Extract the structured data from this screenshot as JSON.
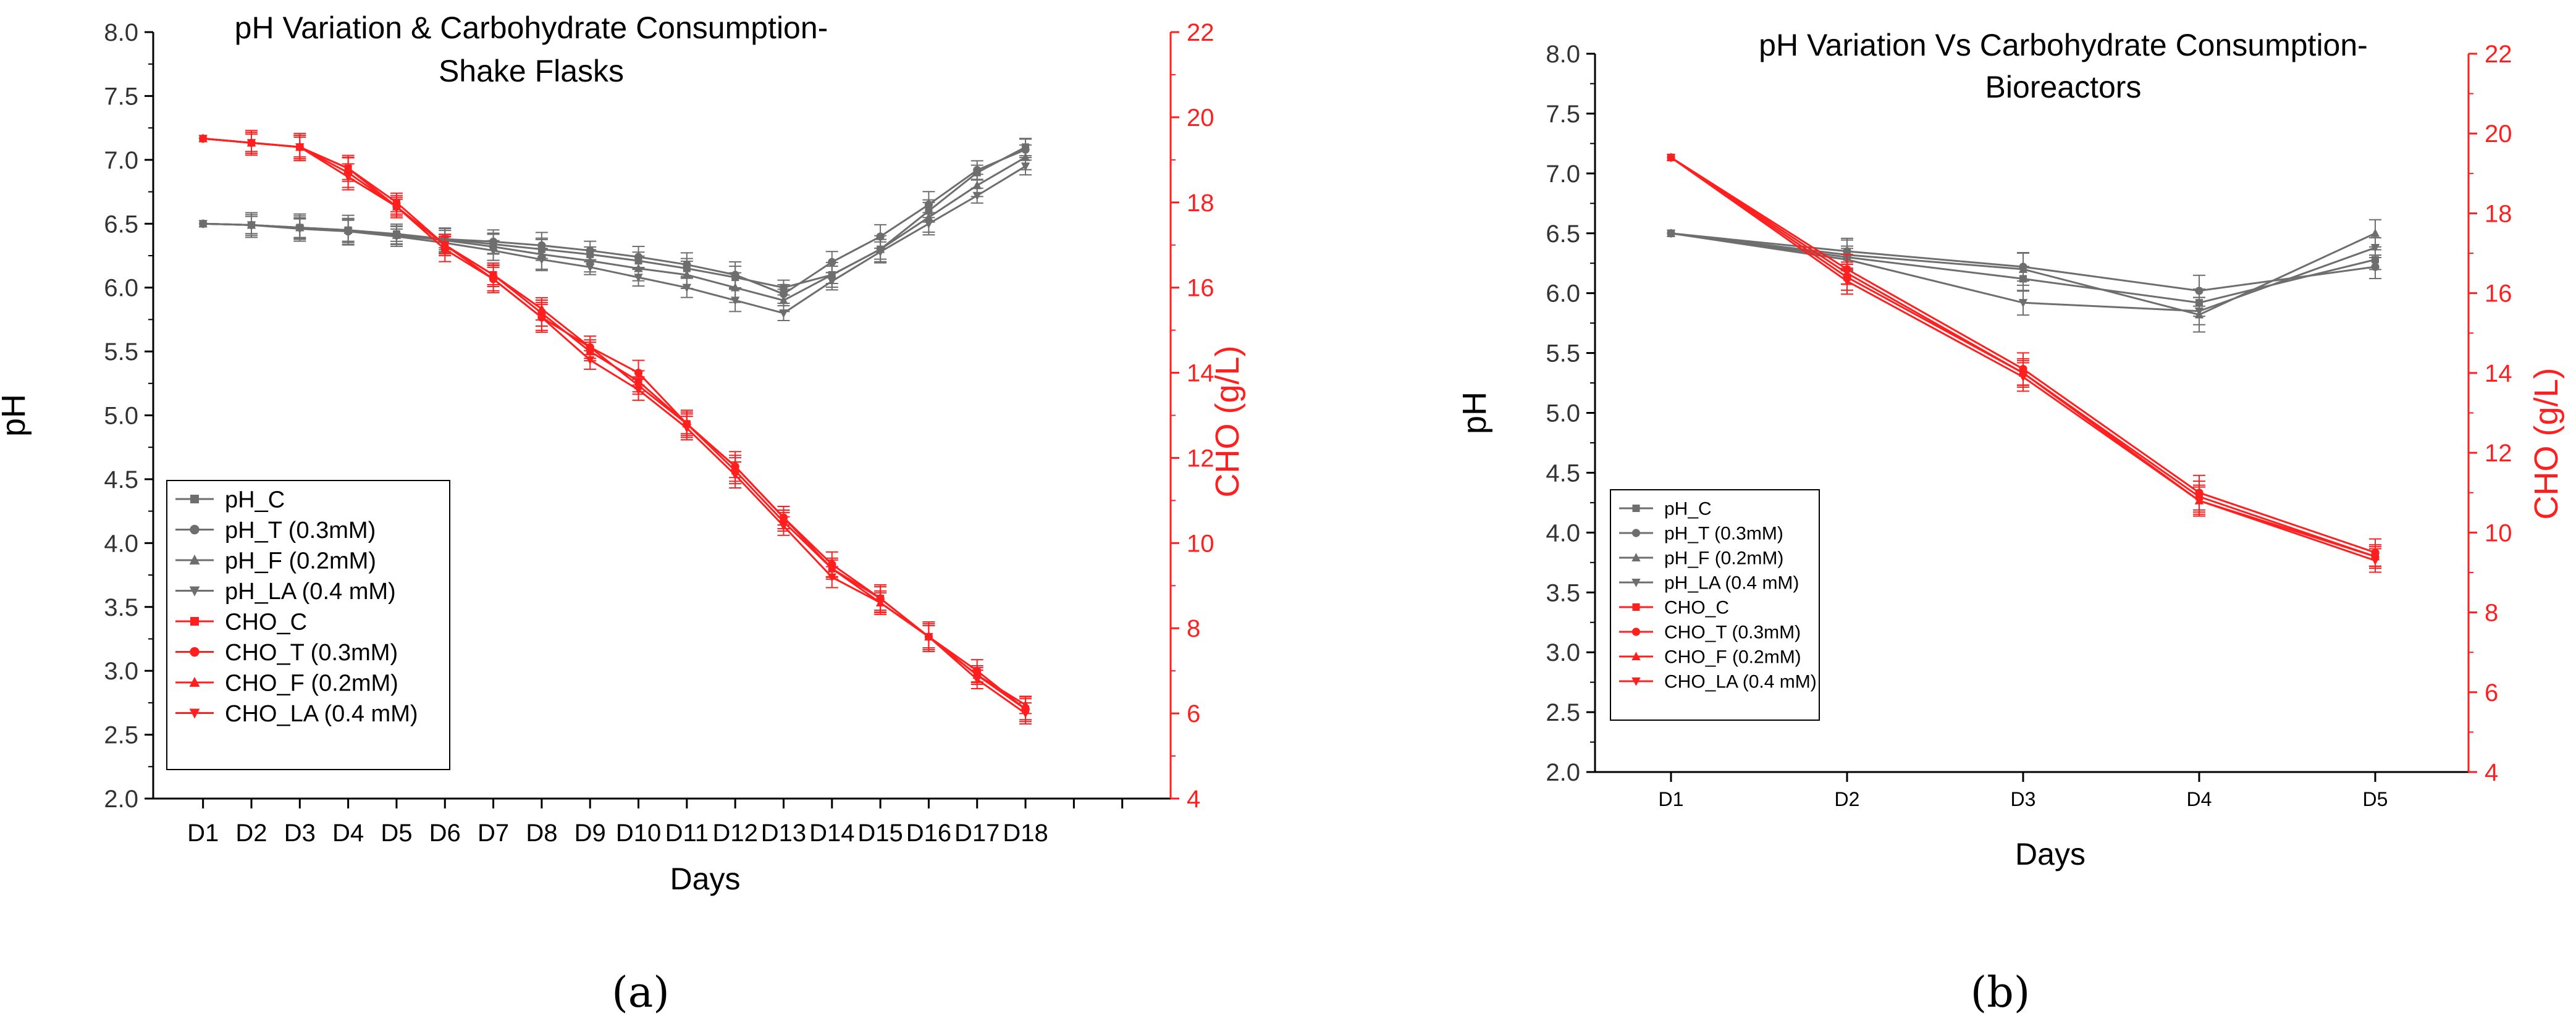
{
  "colors": {
    "ph": "#6e6e6e",
    "cho": "#ff1f1f"
  },
  "captions": [
    "(a)",
    "(b)"
  ],
  "chart_data": [
    {
      "type": "line",
      "title_line1": "pH Variation & Carbohydrate Consumption-",
      "title_line2": "Shake Flasks",
      "xlabel": "Days",
      "ylabel": "pH",
      "y2label": "CHO (g/L)",
      "grid": false,
      "legend_position": "bottom-left",
      "ylim": [
        2.0,
        8.0
      ],
      "y_ticks": [
        "2.0",
        "2.5",
        "3.0",
        "3.5",
        "4.0",
        "4.5",
        "5.0",
        "5.5",
        "6.0",
        "6.5",
        "7.0",
        "7.5",
        "8.0"
      ],
      "y2lim": [
        4,
        22
      ],
      "y2_ticks": [
        "4",
        "6",
        "8",
        "10",
        "12",
        "14",
        "16",
        "18",
        "20",
        "22"
      ],
      "x_slot_count": 20,
      "categories": [
        "D1",
        "D2",
        "D3",
        "D4",
        "D5",
        "D6",
        "D7",
        "D8",
        "D9",
        "D10",
        "D11",
        "D12",
        "D13",
        "D14",
        "D15",
        "D16",
        "D17",
        "D18"
      ],
      "series": [
        {
          "name": "pH_C",
          "axis": "y",
          "marker": "square",
          "values": [
            6.5,
            6.49,
            6.47,
            6.45,
            6.42,
            6.38,
            6.34,
            6.3,
            6.26,
            6.21,
            6.15,
            6.08,
            6.0,
            6.1,
            6.3,
            6.6,
            6.9,
            7.1
          ]
        },
        {
          "name": "pH_T (0.3mM)",
          "axis": "y",
          "marker": "circle",
          "values": [
            6.5,
            6.49,
            6.47,
            6.44,
            6.41,
            6.38,
            6.36,
            6.33,
            6.29,
            6.24,
            6.18,
            6.1,
            5.95,
            6.2,
            6.4,
            6.65,
            6.92,
            7.08
          ]
        },
        {
          "name": "pH_F (0.2mM)",
          "axis": "y",
          "marker": "triangle-up",
          "values": [
            6.5,
            6.49,
            6.47,
            6.45,
            6.41,
            6.37,
            6.32,
            6.26,
            6.21,
            6.15,
            6.1,
            6.0,
            5.9,
            6.1,
            6.3,
            6.55,
            6.8,
            7.02
          ]
        },
        {
          "name": "pH_LA (0.4 mM)",
          "axis": "y",
          "marker": "triangle-down",
          "values": [
            6.5,
            6.49,
            6.46,
            6.44,
            6.4,
            6.35,
            6.29,
            6.22,
            6.16,
            6.08,
            6.0,
            5.9,
            5.8,
            6.05,
            6.28,
            6.5,
            6.72,
            6.95
          ]
        },
        {
          "name": "CHO_C",
          "axis": "y2",
          "marker": "square",
          "values": [
            19.5,
            19.4,
            19.3,
            18.8,
            18.0,
            17.0,
            16.3,
            15.4,
            14.5,
            13.8,
            12.8,
            11.7,
            10.5,
            9.4,
            8.7,
            7.8,
            6.9,
            6.1
          ]
        },
        {
          "name": "CHO_T (0.3mM)",
          "axis": "y2",
          "marker": "circle",
          "values": [
            19.5,
            19.4,
            19.3,
            18.7,
            17.9,
            16.9,
            16.2,
            15.3,
            14.6,
            14.0,
            12.8,
            11.8,
            10.6,
            9.5,
            8.7,
            7.8,
            7.0,
            6.1
          ]
        },
        {
          "name": "CHO_F (0.2mM)",
          "axis": "y2",
          "marker": "triangle-up",
          "values": [
            19.5,
            19.4,
            19.3,
            18.8,
            17.9,
            17.0,
            16.3,
            15.5,
            14.6,
            13.7,
            12.8,
            11.8,
            10.6,
            9.4,
            8.6,
            7.8,
            6.9,
            6.2
          ]
        },
        {
          "name": "CHO_LA (0.4 mM)",
          "axis": "y2",
          "marker": "triangle-down",
          "values": [
            19.5,
            19.4,
            19.3,
            18.6,
            17.9,
            17.0,
            16.2,
            15.3,
            14.3,
            13.6,
            12.7,
            11.6,
            10.4,
            9.2,
            8.6,
            7.8,
            6.8,
            6.0
          ]
        }
      ]
    },
    {
      "type": "line",
      "title_line1": "pH Variation Vs Carbohydrate Consumption-",
      "title_line2": "Bioreactors",
      "xlabel": "Days",
      "ylabel": "pH",
      "y2label": "CHO (g/L)",
      "grid": false,
      "legend_position": "bottom-left",
      "ylim": [
        2.0,
        8.0
      ],
      "y_ticks": [
        "2.0",
        "2.5",
        "3.0",
        "3.5",
        "4.0",
        "4.5",
        "5.0",
        "5.5",
        "6.0",
        "6.5",
        "7.0",
        "7.5",
        "8.0"
      ],
      "y2lim": [
        4,
        22
      ],
      "y2_ticks": [
        "4",
        "6",
        "8",
        "10",
        "12",
        "14",
        "16",
        "18",
        "20",
        "22"
      ],
      "x_slot_count": 5,
      "categories": [
        "D1",
        "D2",
        "D3",
        "D4",
        "D5"
      ],
      "series": [
        {
          "name": "pH_C",
          "axis": "y",
          "marker": "square",
          "values": [
            6.5,
            6.3,
            6.12,
            5.92,
            6.28
          ]
        },
        {
          "name": "pH_T (0.3mM)",
          "axis": "y",
          "marker": "circle",
          "values": [
            6.5,
            6.35,
            6.22,
            6.02,
            6.22
          ]
        },
        {
          "name": "pH_F (0.2mM)",
          "axis": "y",
          "marker": "triangle-up",
          "values": [
            6.5,
            6.32,
            6.2,
            5.82,
            6.5
          ]
        },
        {
          "name": "pH_LA (0.4 mM)",
          "axis": "y",
          "marker": "triangle-down",
          "values": [
            6.5,
            6.28,
            5.92,
            5.85,
            6.38
          ]
        },
        {
          "name": "CHO_C",
          "axis": "y2",
          "marker": "square",
          "values": [
            19.4,
            16.4,
            14.0,
            10.9,
            9.4
          ]
        },
        {
          "name": "CHO_T (0.3mM)",
          "axis": "y2",
          "marker": "circle",
          "values": [
            19.4,
            16.6,
            14.1,
            11.0,
            9.5
          ]
        },
        {
          "name": "CHO_F (0.2mM)",
          "axis": "y2",
          "marker": "triangle-up",
          "values": [
            19.4,
            16.5,
            14.0,
            10.8,
            9.4
          ]
        },
        {
          "name": "CHO_LA (0.4 mM)",
          "axis": "y2",
          "marker": "triangle-down",
          "values": [
            19.4,
            16.3,
            13.9,
            10.8,
            9.3
          ]
        }
      ]
    }
  ]
}
